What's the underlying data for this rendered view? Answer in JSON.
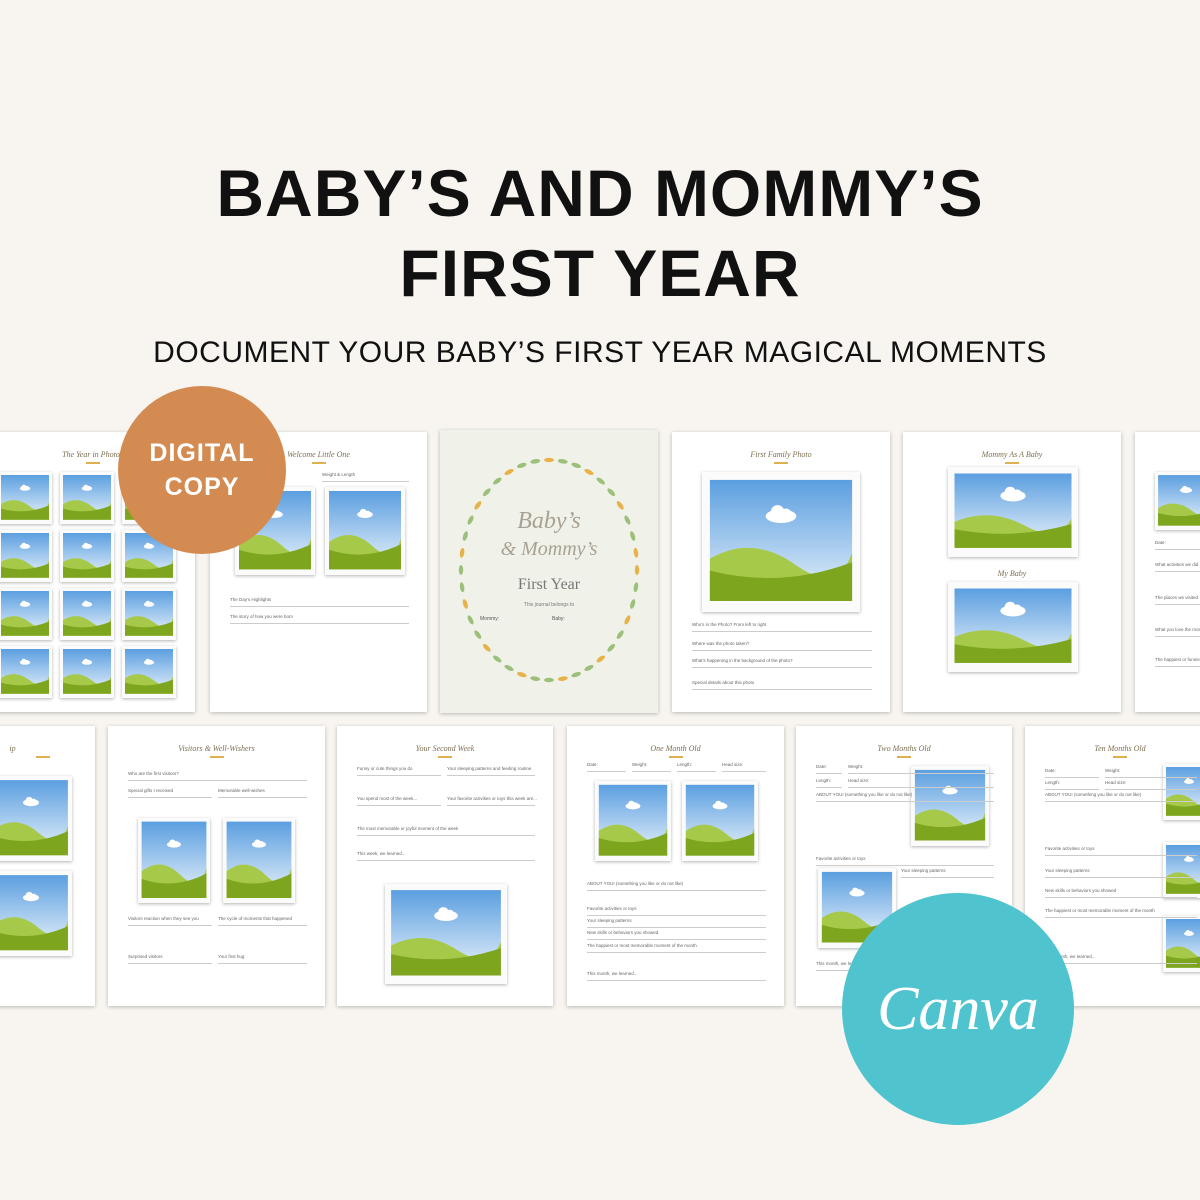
{
  "header": {
    "title_lines": [
      "BABY’S AND MOMMY’S",
      "FIRST YEAR"
    ],
    "subtitle": "DOCUMENT YOUR BABY’S FIRST YEAR MAGICAL MOMENTS"
  },
  "badges": {
    "digital": [
      "DIGITAL",
      "COPY"
    ],
    "canva": "Canva"
  },
  "cover": {
    "script_lines": [
      "Baby’s",
      "& Mommy’s"
    ],
    "title": "First Year",
    "belongs": "This journal belongs to",
    "mommy": "Mommy:",
    "baby": "Baby:"
  },
  "pages": [
    {
      "title": "The Year in Photos",
      "fields": []
    },
    {
      "title": "Welcome Little One",
      "fields": [
        "Weight & Length",
        "The Day’s Highlights",
        "The story of how you were born"
      ]
    },
    {
      "title": "First Family Photo",
      "fields": [
        "Who’s in the Photo? From left to right",
        "Where was the photo taken?",
        "What’s happening in the background of the photo?",
        "Special details about this photo"
      ]
    },
    {
      "title": "Mommy As A Baby",
      "title2": "My Baby",
      "fields": []
    },
    {
      "title": "",
      "fields": [
        "Date:",
        "What activities we did",
        "The places we visited",
        "What you love the most",
        "The happiest or funniest"
      ]
    },
    {
      "title": "ip",
      "fields": []
    },
    {
      "title": "Visitors & Well-Wishers",
      "fields": [
        "Who are the first visitors?",
        "Special gifts I received",
        "Memorable well-wishes",
        "Visitors reaction when they see you",
        "The cycle of moments that happened",
        "Surprised visitors",
        "Your first hug"
      ]
    },
    {
      "title": "Your Second Week",
      "fields": [
        "Funny or cute things you do",
        "Your sleeping patterns and feeding routine",
        "You spend most of the week...",
        "Your favorite activities or toys this week are...",
        "The most memorable or joyful moment of the week",
        "This week, we learned..."
      ]
    },
    {
      "title": "One Month Old",
      "fields": [
        "Date:",
        "Weight:",
        "Length:",
        "Head size:",
        "ABOUT YOU! (something you like or do not like)",
        "Favorite activities or toys",
        "Your sleeping patterns",
        "New skills or behaviors you showed",
        "The happiest or most memorable moment of the month",
        "This month, we learned..."
      ]
    },
    {
      "title": "Two Months Old",
      "fields": [
        "Date:",
        "Weight:",
        "Length:",
        "Head size:",
        "ABOUT YOU! (something you like or do not like)",
        "Favorite activities or toys",
        "Your sleeping patterns",
        "This month, we learned..."
      ]
    },
    {
      "title": "Ten Months Old",
      "fields": [
        "Date:",
        "Weight:",
        "Length:",
        "Head size:",
        "ABOUT YOU! (something you like or do not like)",
        "Favorite activities or toys",
        "Your sleeping patterns",
        "New skills or behaviors you showed",
        "The happiest or most memorable moment of the month",
        "This month, we learned..."
      ]
    }
  ]
}
